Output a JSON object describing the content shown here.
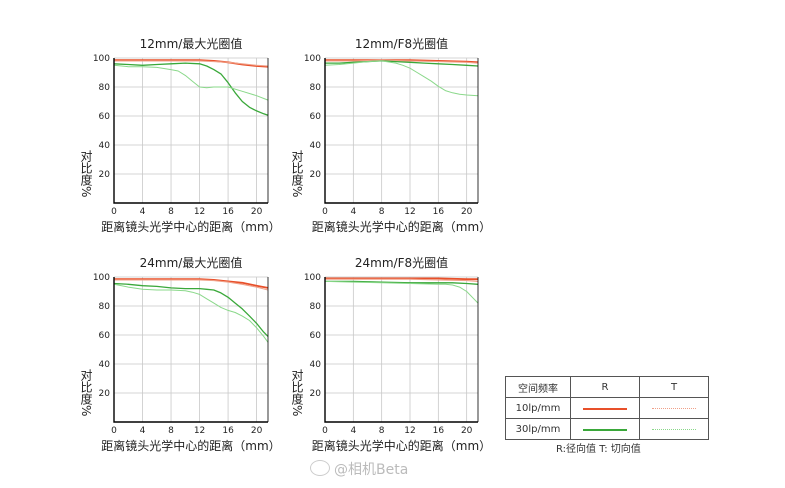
{
  "chart_data": [
    {
      "type": "line",
      "title": "12mm/最大光圈值",
      "xlabel": "距离镜头光学中心的距离（mm）",
      "ylabel": "对比度%",
      "xlim": [
        0,
        21.6
      ],
      "ylim": [
        0,
        100
      ],
      "xticks": [
        0,
        4,
        8,
        12,
        16,
        20
      ],
      "yticks": [
        20,
        40,
        60,
        80,
        100
      ],
      "grid": true,
      "series": [
        {
          "name": "R 10lp/mm",
          "x": [
            0,
            4,
            8,
            12,
            14,
            16,
            18,
            20,
            21.6
          ],
          "values": [
            98.5,
            98.5,
            98.5,
            98.5,
            98,
            97,
            95.5,
            94.5,
            94
          ]
        },
        {
          "name": "T 10lp/mm",
          "x": [
            0,
            4,
            8,
            12,
            14,
            16,
            18,
            20,
            21.6
          ],
          "values": [
            98,
            98,
            98,
            98,
            97.5,
            97,
            96,
            95,
            94.5
          ]
        },
        {
          "name": "R 30lp/mm",
          "x": [
            0,
            2,
            4,
            6,
            8,
            10,
            12,
            13,
            14,
            15,
            16,
            17,
            18,
            19,
            20,
            21,
            21.6
          ],
          "values": [
            96,
            95.5,
            95,
            95.5,
            96,
            96.5,
            96,
            94.5,
            92,
            89,
            83,
            76,
            70,
            66,
            63.5,
            61.5,
            60.5
          ]
        },
        {
          "name": "T 30lp/mm",
          "x": [
            0,
            2,
            4,
            6,
            8,
            9,
            10,
            11,
            12,
            13,
            14,
            16,
            18,
            20,
            21.6
          ],
          "values": [
            95,
            94,
            94,
            93.5,
            92,
            91,
            88,
            84,
            80,
            79.5,
            80,
            80,
            77,
            74,
            71
          ]
        }
      ]
    },
    {
      "type": "line",
      "title": "12mm/F8光圈值",
      "xlabel": "距离镜头光学中心的距离（mm）",
      "ylabel": "对比度%",
      "xlim": [
        0,
        21.6
      ],
      "ylim": [
        0,
        100
      ],
      "xticks": [
        0,
        4,
        8,
        12,
        16,
        20
      ],
      "yticks": [
        20,
        40,
        60,
        80,
        100
      ],
      "grid": true,
      "series": [
        {
          "name": "R 10lp/mm",
          "x": [
            0,
            4,
            8,
            12,
            16,
            20,
            21.6
          ],
          "values": [
            98.5,
            98.5,
            98.5,
            98.5,
            98,
            97.5,
            97
          ]
        },
        {
          "name": "T 10lp/mm",
          "x": [
            0,
            4,
            8,
            12,
            16,
            20,
            21.6
          ],
          "values": [
            98,
            98,
            98.5,
            98,
            97.5,
            97,
            96.5
          ]
        },
        {
          "name": "R 30lp/mm",
          "x": [
            0,
            2,
            4,
            6,
            8,
            10,
            12,
            14,
            16,
            18,
            20,
            21.6
          ],
          "values": [
            96.5,
            96.5,
            97,
            97.5,
            98,
            97.5,
            97,
            96.5,
            96,
            95.5,
            95,
            94.5
          ]
        },
        {
          "name": "T 30lp/mm",
          "x": [
            0,
            2,
            4,
            6,
            8,
            10,
            11,
            12,
            13,
            14,
            15,
            16,
            17,
            18,
            19,
            20,
            21.6
          ],
          "values": [
            95,
            95.5,
            96.5,
            97.5,
            98,
            96.5,
            95,
            93,
            90,
            87,
            84,
            80.5,
            77.5,
            76,
            75,
            74.5,
            74
          ]
        }
      ]
    },
    {
      "type": "line",
      "title": "24mm/最大光圈值",
      "xlabel": "距离镜头光学中心的距离（mm）",
      "ylabel": "对比度%",
      "xlim": [
        0,
        21.6
      ],
      "ylim": [
        0,
        100
      ],
      "xticks": [
        0,
        4,
        8,
        12,
        16,
        20
      ],
      "yticks": [
        20,
        40,
        60,
        80,
        100
      ],
      "grid": true,
      "series": [
        {
          "name": "R 10lp/mm",
          "x": [
            0,
            4,
            8,
            12,
            14,
            16,
            18,
            20,
            21.6
          ],
          "values": [
            98.5,
            98.5,
            98.5,
            98.5,
            98,
            97,
            96,
            94,
            92.5
          ]
        },
        {
          "name": "T 10lp/mm",
          "x": [
            0,
            4,
            8,
            12,
            14,
            16,
            18,
            20,
            21.6
          ],
          "values": [
            98,
            98,
            98,
            98,
            97.5,
            96.5,
            95,
            93,
            91
          ]
        },
        {
          "name": "R 30lp/mm",
          "x": [
            0,
            2,
            4,
            6,
            8,
            10,
            12,
            13,
            14,
            15,
            16,
            17,
            18,
            19,
            20,
            21,
            21.6
          ],
          "values": [
            95.5,
            95,
            94,
            93.5,
            92.5,
            92,
            92,
            91.5,
            91,
            89,
            86,
            82,
            78,
            73,
            68,
            62,
            59
          ]
        },
        {
          "name": "T 30lp/mm",
          "x": [
            0,
            2,
            4,
            6,
            8,
            10,
            11,
            12,
            13,
            14,
            15,
            16,
            17,
            18,
            19,
            20,
            21,
            21.6
          ],
          "values": [
            95,
            93,
            91.5,
            91,
            91,
            90.5,
            89.5,
            88,
            85,
            82,
            79,
            77,
            75.5,
            73,
            70,
            65,
            59,
            55
          ]
        }
      ]
    },
    {
      "type": "line",
      "title": "24mm/F8光圈值",
      "xlabel": "距离镜头光学中心的距离（mm）",
      "ylabel": "对比度%",
      "xlim": [
        0,
        21.6
      ],
      "ylim": [
        0,
        100
      ],
      "xticks": [
        0,
        4,
        8,
        12,
        16,
        20
      ],
      "yticks": [
        20,
        40,
        60,
        80,
        100
      ],
      "grid": true,
      "series": [
        {
          "name": "R 10lp/mm",
          "x": [
            0,
            4,
            8,
            12,
            16,
            20,
            21.6
          ],
          "values": [
            99,
            99,
            99,
            99,
            99,
            98.5,
            98.5
          ]
        },
        {
          "name": "T 10lp/mm",
          "x": [
            0,
            4,
            8,
            12,
            16,
            20,
            21.6
          ],
          "values": [
            98.5,
            98.5,
            98.5,
            98.5,
            98,
            97.5,
            97
          ]
        },
        {
          "name": "R 30lp/mm",
          "x": [
            0,
            4,
            8,
            12,
            16,
            18,
            20,
            21.6
          ],
          "values": [
            97,
            97,
            96.5,
            96,
            96,
            96,
            95.5,
            95
          ]
        },
        {
          "name": "T 30lp/mm",
          "x": [
            0,
            4,
            8,
            12,
            16,
            17,
            18,
            19,
            20,
            21,
            21.6
          ],
          "values": [
            97,
            96.5,
            96,
            95.5,
            95,
            95,
            94.5,
            93,
            90,
            85,
            82
          ]
        }
      ]
    }
  ],
  "legend": {
    "header_label": "空间频率",
    "col_r": "R",
    "col_t": "T",
    "row1_label": "10lp/mm",
    "row2_label": "30lp/mm",
    "note": "R:径向值 T: 切向值"
  },
  "colors": {
    "lp10_r": "#e8502a",
    "lp10_t": "#f0a088",
    "lp30_r": "#3aa83a",
    "lp30_t": "#8ad88a",
    "axis": "#000000",
    "grid": "#c8c8c8"
  },
  "watermark": "@相机Beta"
}
